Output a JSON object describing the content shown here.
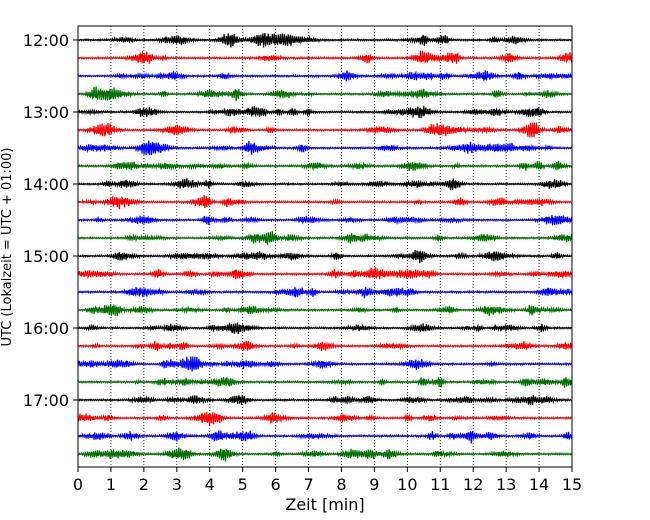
{
  "chart_data": {
    "type": "line",
    "title": "",
    "xlabel": "Zeit  [min]",
    "ylabel": "UTC (Lokalzeit = UTC + 01:00)",
    "xlim": [
      0,
      15
    ],
    "x_ticks": [
      "0",
      "1",
      "2",
      "3",
      "4",
      "5",
      "6",
      "7",
      "8",
      "9",
      "10",
      "11",
      "12",
      "13",
      "14",
      "15"
    ],
    "y_ticks": [
      "12:00",
      "13:00",
      "14:00",
      "15:00",
      "16:00",
      "17:00"
    ],
    "grid": "vertical dotted lines at each minute",
    "trace_interval_minutes": 15,
    "trace_start_times": [
      "12:00",
      "12:15",
      "12:30",
      "12:45",
      "13:00",
      "13:15",
      "13:30",
      "13:45",
      "14:00",
      "14:15",
      "14:30",
      "14:45",
      "15:00",
      "15:15",
      "15:30",
      "15:45",
      "16:00",
      "16:15",
      "16:30",
      "16:45",
      "17:00",
      "17:15",
      "17:30",
      "17:45"
    ],
    "trace_colors": [
      "#000000",
      "#ff0000",
      "#0000ff",
      "#007000"
    ]
  }
}
